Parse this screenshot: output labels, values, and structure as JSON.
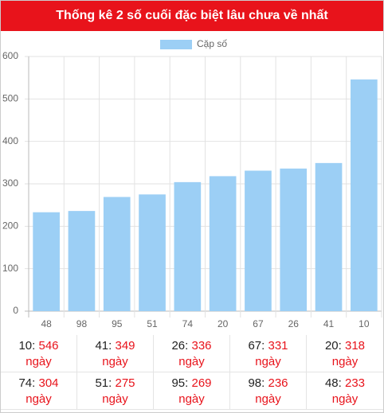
{
  "header": {
    "title": "Thống kê 2 số cuối đặc biệt lâu chưa về nhất"
  },
  "chart_data": {
    "type": "bar",
    "categories": [
      "48",
      "98",
      "95",
      "51",
      "74",
      "20",
      "67",
      "26",
      "41",
      "10"
    ],
    "series": [
      {
        "name": "Cặp số",
        "color": "#9ccff5",
        "values": [
          233,
          236,
          269,
          275,
          304,
          318,
          331,
          336,
          349,
          546
        ]
      }
    ],
    "ylim": [
      0,
      600
    ],
    "yticks": [
      0,
      100,
      200,
      300,
      400,
      500,
      600
    ],
    "grid": true,
    "legend": "top"
  },
  "table": {
    "unit": "ngày"
  }
}
